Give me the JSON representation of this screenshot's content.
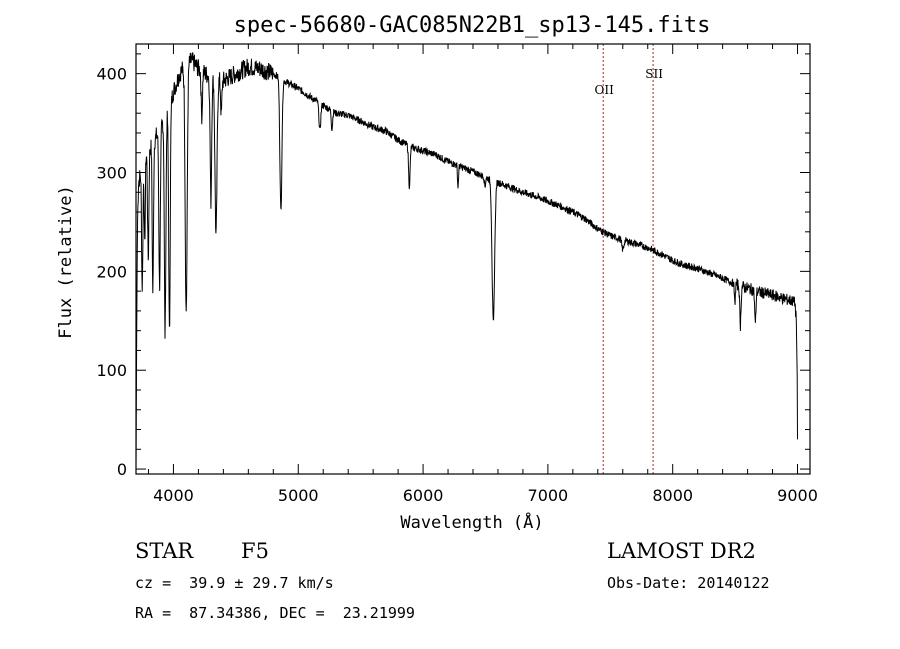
{
  "chart_data": {
    "type": "line",
    "title": "spec-56680-GAC085N22B1_sp13-145.fits",
    "xlabel": "Wavelength (Å)",
    "ylabel": "Flux (relative)",
    "xlim": [
      3700,
      9100
    ],
    "ylim": [
      -5,
      430
    ],
    "xticks": [
      4000,
      5000,
      6000,
      7000,
      8000,
      9000
    ],
    "yticks": [
      0,
      100,
      200,
      300,
      400
    ],
    "grid": false,
    "series": [
      {
        "name": "spectrum",
        "continuum": [
          [
            3700,
            0
          ],
          [
            3705,
            120
          ],
          [
            3712,
            250
          ],
          [
            3720,
            290
          ],
          [
            3740,
            300
          ],
          [
            3780,
            318
          ],
          [
            3850,
            333
          ],
          [
            3900,
            348
          ],
          [
            3960,
            362
          ],
          [
            4000,
            382
          ],
          [
            4050,
            400
          ],
          [
            4100,
            410
          ],
          [
            4150,
            413
          ],
          [
            4200,
            405
          ],
          [
            4300,
            396
          ],
          [
            4400,
            393
          ],
          [
            4500,
            400
          ],
          [
            4600,
            407
          ],
          [
            4700,
            405
          ],
          [
            4800,
            400
          ],
          [
            4900,
            392
          ],
          [
            5000,
            385
          ],
          [
            5100,
            376
          ],
          [
            5200,
            368
          ],
          [
            5300,
            360
          ],
          [
            5400,
            358
          ],
          [
            5500,
            352
          ],
          [
            5600,
            346
          ],
          [
            5700,
            342
          ],
          [
            5800,
            333
          ],
          [
            5900,
            326
          ],
          [
            6000,
            322
          ],
          [
            6100,
            318
          ],
          [
            6200,
            311
          ],
          [
            6300,
            306
          ],
          [
            6400,
            301
          ],
          [
            6500,
            295
          ],
          [
            6600,
            290
          ],
          [
            6700,
            285
          ],
          [
            6800,
            280
          ],
          [
            6900,
            276
          ],
          [
            7000,
            271
          ],
          [
            7100,
            266
          ],
          [
            7200,
            260
          ],
          [
            7300,
            253
          ],
          [
            7400,
            243
          ],
          [
            7500,
            236
          ],
          [
            7600,
            232
          ],
          [
            7700,
            228
          ],
          [
            7800,
            224
          ],
          [
            7900,
            218
          ],
          [
            8000,
            211
          ],
          [
            8100,
            206
          ],
          [
            8200,
            203
          ],
          [
            8300,
            198
          ],
          [
            8400,
            193
          ],
          [
            8500,
            187
          ],
          [
            8600,
            183
          ],
          [
            8700,
            179
          ],
          [
            8800,
            176
          ],
          [
            8900,
            172
          ],
          [
            8960,
            170
          ],
          [
            8980,
            168
          ],
          [
            8990,
            150
          ],
          [
            8998,
            90
          ],
          [
            9000,
            30
          ]
        ],
        "absorption_lines": [
          [
            3750,
            120,
            5
          ],
          [
            3770,
            90,
            4
          ],
          [
            3798,
            110,
            5
          ],
          [
            3835,
            150,
            5
          ],
          [
            3889,
            160,
            6
          ],
          [
            3933,
            220,
            6
          ],
          [
            3968,
            230,
            6
          ],
          [
            4102,
            250,
            8
          ],
          [
            4227,
            45,
            5
          ],
          [
            4300,
            125,
            6
          ],
          [
            4341,
            160,
            8
          ],
          [
            4383,
            35,
            5
          ],
          [
            4861,
            135,
            8
          ],
          [
            5173,
            28,
            7
          ],
          [
            5270,
            18,
            5
          ],
          [
            5890,
            40,
            6
          ],
          [
            6280,
            22,
            4
          ],
          [
            6496,
            10,
            4
          ],
          [
            6563,
            145,
            10
          ],
          [
            7600,
            10,
            8
          ],
          [
            8498,
            20,
            4
          ],
          [
            8542,
            40,
            5
          ],
          [
            8662,
            34,
            5
          ]
        ],
        "noise_amplitude": 6
      }
    ],
    "reference_lines": [
      {
        "label": "OII",
        "x": 7443
      },
      {
        "label": "SII",
        "x": 7843
      }
    ],
    "line_color": "#000000",
    "reference_line_color": "#b22222"
  },
  "captions": {
    "object_class": "STAR",
    "subclass": "F5",
    "survey": "LAMOST DR2",
    "redshift": "cz =  39.9 ± 29.7 km/s",
    "obs_date": "Obs-Date: 20140122",
    "coords": "RA =  87.34386, DEC =  23.21999"
  }
}
